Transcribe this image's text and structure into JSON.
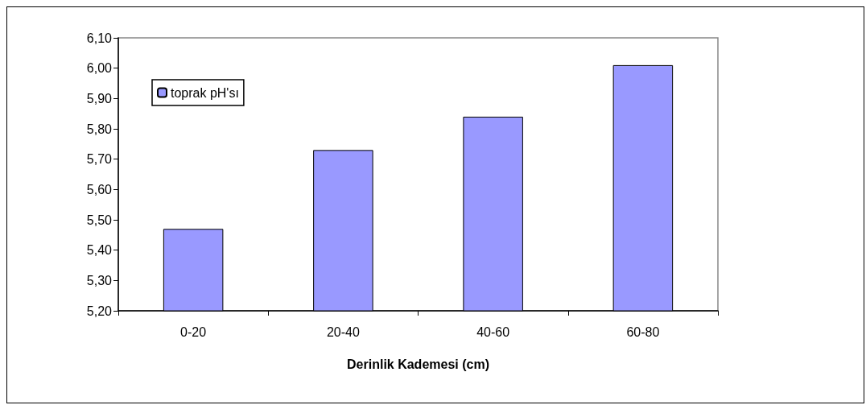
{
  "chart_data": {
    "type": "bar",
    "xlabel": "Derinlik Kademesi (cm)",
    "categories": [
      "0-20",
      "20-40",
      "40-60",
      "60-80"
    ],
    "series": [
      {
        "name": "toprak pH'sı",
        "color": "#9999ff",
        "values": [
          5.47,
          5.73,
          5.84,
          6.01
        ]
      }
    ],
    "ylim": [
      5.2,
      6.1
    ],
    "yticks": [
      {
        "value": 5.2,
        "label": "5,20"
      },
      {
        "value": 5.3,
        "label": "5,30"
      },
      {
        "value": 5.4,
        "label": "5,40"
      },
      {
        "value": 5.5,
        "label": "5,50"
      },
      {
        "value": 5.6,
        "label": "5,60"
      },
      {
        "value": 5.7,
        "label": "5,70"
      },
      {
        "value": 5.8,
        "label": "5,80"
      },
      {
        "value": 5.9,
        "label": "5,90"
      },
      {
        "value": 6.0,
        "label": "6,00"
      },
      {
        "value": 6.1,
        "label": "6,10"
      }
    ],
    "grid": false,
    "legend": "top left"
  }
}
